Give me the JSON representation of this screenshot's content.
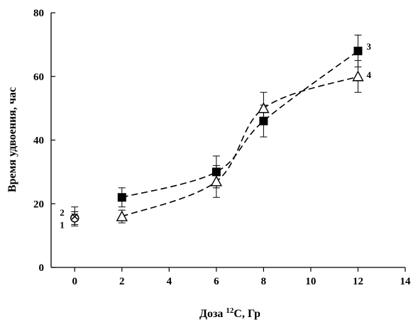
{
  "chart_data": {
    "type": "scatter",
    "xlabel_prefix": "Доза ",
    "xlabel_sup": "12",
    "xlabel_suffix": "C, Гр",
    "ylabel": "Время удвоения, час",
    "xlim": [
      -1,
      14
    ],
    "ylim": [
      0,
      80
    ],
    "xticks": [
      0,
      2,
      4,
      6,
      8,
      10,
      12,
      14
    ],
    "yticks": [
      0,
      20,
      40,
      60,
      80
    ],
    "grid": false,
    "series": [
      {
        "name": "3",
        "marker": "filled-square",
        "line": "dashed",
        "x": [
          2,
          6,
          8,
          12
        ],
        "y": [
          22,
          30,
          46,
          68
        ],
        "err": [
          3,
          5,
          5,
          5
        ]
      },
      {
        "name": "4",
        "marker": "open-triangle",
        "line": "dashed",
        "x": [
          2,
          6,
          8,
          12
        ],
        "y": [
          16,
          27,
          50,
          60
        ],
        "err": [
          2,
          5,
          5,
          5
        ]
      }
    ],
    "control_points": [
      {
        "name": "1",
        "marker": "open-circle",
        "x": 0,
        "y": 15.5,
        "err": 2
      },
      {
        "name": "2",
        "marker": "x-cross",
        "x": 0,
        "y": 16,
        "err": 3
      }
    ],
    "colors": {
      "ink": "#000000"
    }
  }
}
